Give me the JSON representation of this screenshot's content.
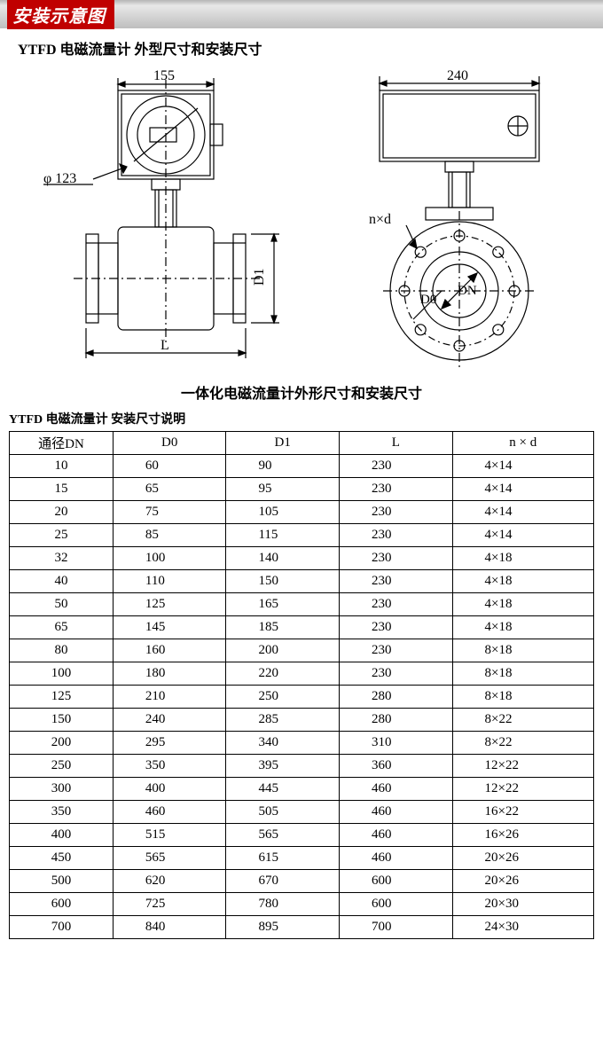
{
  "banner": {
    "title": "安装示意图"
  },
  "heading1": "YTFD  电磁流量计  外型尺寸和安装尺寸",
  "diagram": {
    "left": {
      "top_dim": "155",
      "diameter": "φ 123",
      "vertical_dim": "D1",
      "bottom_dim": "L"
    },
    "right": {
      "top_dim": "240",
      "bolt": "n×d",
      "d0": "D0",
      "dn": "DN"
    },
    "stroke": "#000000",
    "fill": "#ffffff"
  },
  "subheading": "一体化电磁流量计外形尺寸和安装尺寸",
  "table_heading": "YTFD 电磁流量计  安装尺寸说明",
  "table": {
    "columns": [
      "通径DN",
      "D0",
      "D1",
      "L",
      "n × d"
    ],
    "rows": [
      [
        "10",
        "60",
        "90",
        "230",
        "4×14"
      ],
      [
        "15",
        "65",
        "95",
        "230",
        "4×14"
      ],
      [
        "20",
        "75",
        "105",
        "230",
        "4×14"
      ],
      [
        "25",
        "85",
        "115",
        "230",
        "4×14"
      ],
      [
        "32",
        "100",
        "140",
        "230",
        "4×18"
      ],
      [
        "40",
        "110",
        "150",
        "230",
        "4×18"
      ],
      [
        "50",
        "125",
        "165",
        "230",
        "4×18"
      ],
      [
        "65",
        "145",
        "185",
        "230",
        "4×18"
      ],
      [
        "80",
        "160",
        "200",
        "230",
        "8×18"
      ],
      [
        "100",
        "180",
        "220",
        "230",
        "8×18"
      ],
      [
        "125",
        "210",
        "250",
        "280",
        "8×18"
      ],
      [
        "150",
        "240",
        "285",
        "280",
        "8×22"
      ],
      [
        "200",
        "295",
        "340",
        "310",
        "8×22"
      ],
      [
        "250",
        "350",
        "395",
        "360",
        "12×22"
      ],
      [
        "300",
        "400",
        "445",
        "460",
        "12×22"
      ],
      [
        "350",
        "460",
        "505",
        "460",
        "16×22"
      ],
      [
        "400",
        "515",
        "565",
        "460",
        "16×26"
      ],
      [
        "450",
        "565",
        "615",
        "460",
        "20×26"
      ],
      [
        "500",
        "620",
        "670",
        "600",
        "20×26"
      ],
      [
        "600",
        "725",
        "780",
        "600",
        "20×30"
      ],
      [
        "700",
        "840",
        "895",
        "700",
        "24×30"
      ]
    ]
  }
}
